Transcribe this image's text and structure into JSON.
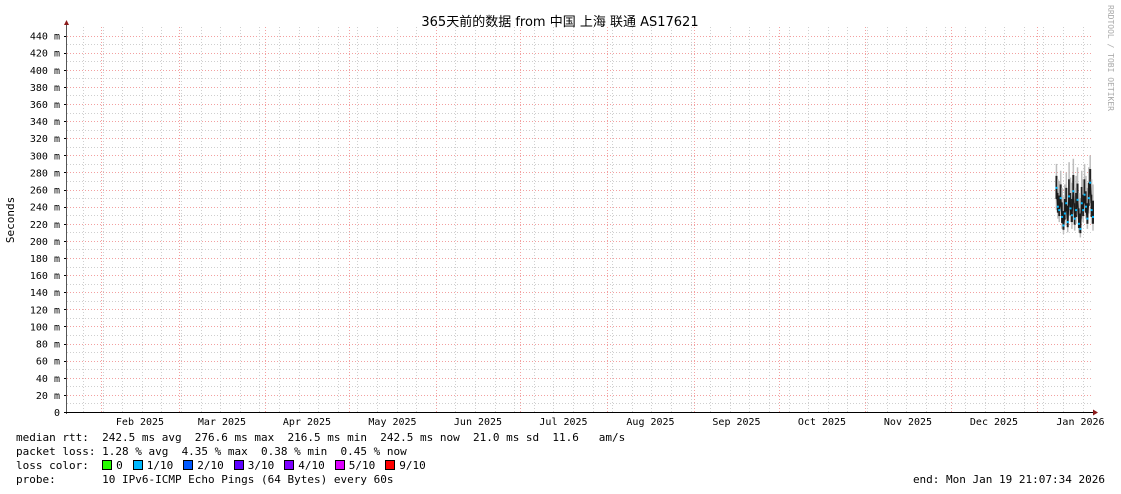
{
  "chart_data": {
    "type": "line",
    "title": "365天前的数据 from  中国 上海 联通 AS17621",
    "ylabel": "Seconds",
    "watermark": "RRDTOOL / TOBI OETIKER",
    "ylim": [
      0,
      0.45
    ],
    "y_ticks": [
      "0",
      "20 m",
      "40 m",
      "60 m",
      "80 m",
      "100 m",
      "120 m",
      "140 m",
      "160 m",
      "180 m",
      "200 m",
      "220 m",
      "240 m",
      "260 m",
      "280 m",
      "300 m",
      "320 m",
      "340 m",
      "360 m",
      "380 m",
      "400 m",
      "420 m",
      "440 m"
    ],
    "x_range": [
      "2025-01-19",
      "2026-01-19"
    ],
    "x_ticks": [
      "Feb 2025",
      "Mar 2025",
      "Apr 2025",
      "May 2025",
      "Jun 2025",
      "Jul 2025",
      "Aug 2025",
      "Sep 2025",
      "Oct 2025",
      "Nov 2025",
      "Dec 2025",
      "Jan 2026"
    ],
    "grid": true,
    "series": [
      {
        "x": [
          "2026-01-06",
          "2026-01-06.5",
          "2026-01-07",
          "2026-01-07.5",
          "2026-01-08",
          "2026-01-08.5",
          "2026-01-09",
          "2026-01-09.5",
          "2026-01-10",
          "2026-01-10.5",
          "2026-01-11",
          "2026-01-11.5",
          "2026-01-12",
          "2026-01-12.5",
          "2026-01-13",
          "2026-01-13.5",
          "2026-01-14",
          "2026-01-14.5",
          "2026-01-15",
          "2026-01-15.5",
          "2026-01-16",
          "2026-01-16.5",
          "2026-01-17",
          "2026-01-17.5",
          "2026-01-18",
          "2026-01-18.5",
          "2026-01-19"
        ],
        "median": [
          0.262,
          0.24,
          0.236,
          0.25,
          0.228,
          0.218,
          0.232,
          0.244,
          0.222,
          0.252,
          0.238,
          0.23,
          0.258,
          0.226,
          0.236,
          0.248,
          0.22,
          0.214,
          0.244,
          0.236,
          0.254,
          0.24,
          0.226,
          0.25,
          0.268,
          0.236,
          0.228
        ],
        "min": [
          0.236,
          0.226,
          0.222,
          0.232,
          0.214,
          0.208,
          0.218,
          0.226,
          0.21,
          0.236,
          0.222,
          0.214,
          0.232,
          0.212,
          0.22,
          0.23,
          0.21,
          0.204,
          0.226,
          0.222,
          0.234,
          0.226,
          0.214,
          0.232,
          0.244,
          0.22,
          0.212
        ],
        "max": [
          0.29,
          0.272,
          0.27,
          0.282,
          0.262,
          0.252,
          0.266,
          0.28,
          0.26,
          0.292,
          0.274,
          0.268,
          0.296,
          0.262,
          0.276,
          0.286,
          0.256,
          0.25,
          0.282,
          0.272,
          0.29,
          0.276,
          0.262,
          0.286,
          0.3,
          0.272,
          0.266
        ]
      }
    ],
    "loss_colors": [
      {
        "label": "0",
        "color": "#26ff00"
      },
      {
        "label": "1/10",
        "color": "#00b8ff"
      },
      {
        "label": "2/10",
        "color": "#0059ff"
      },
      {
        "label": "3/10",
        "color": "#5e00ff"
      },
      {
        "label": "4/10",
        "color": "#7e00ff"
      },
      {
        "label": "5/10",
        "color": "#dd00ff"
      },
      {
        "label": "9/10",
        "color": "#ff0000"
      }
    ]
  },
  "stats": {
    "median_rtt": "median rtt:  242.5 ms avg  276.6 ms max  216.5 ms min  242.5 ms now  21.0 ms sd  11.6   am/s",
    "packet_loss": "packet loss: 1.28 % avg  4.35 % max  0.38 % min  0.45 % now",
    "loss_color_label": "loss color:  ",
    "probe": "probe:       10 IPv6-ICMP Echo Pings (64 Bytes) every 60s",
    "end": "end: Mon Jan 19 21:07:34 2026"
  }
}
